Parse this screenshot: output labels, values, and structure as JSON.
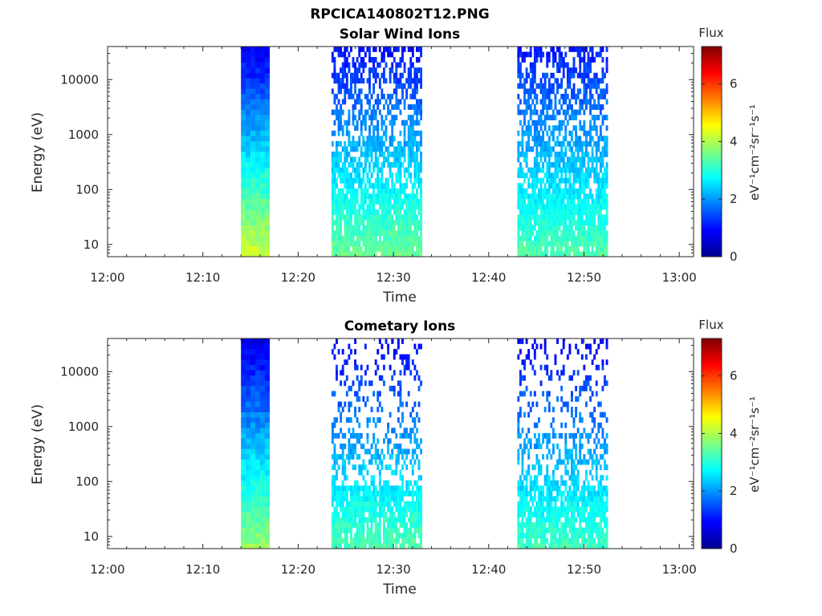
{
  "figure": {
    "main_title": "RPCICA140802T12.PNG"
  },
  "colors": {
    "colormap": [
      "#00008f",
      "#0000ff",
      "#007fff",
      "#00ffff",
      "#7fff7f",
      "#ffff00",
      "#ff7f00",
      "#ff0000",
      "#7f0000"
    ],
    "axes": "#262626",
    "background": "#ffffff"
  },
  "chart_data": [
    {
      "type": "heatmap",
      "title": "Solar Wind Ions",
      "xlabel": "Time",
      "ylabel": "Energy (eV)",
      "x_scale": "time",
      "y_scale": "log",
      "xlim": [
        "12:00",
        "13:01.5"
      ],
      "ylim": [
        6,
        40000
      ],
      "x_ticks": [
        "12:00",
        "12:10",
        "12:20",
        "12:30",
        "12:40",
        "12:50",
        "13:00"
      ],
      "y_ticks": [
        "10",
        "100",
        "1000",
        "10000"
      ],
      "colorbar": {
        "title": "Flux",
        "label": "eV⁻¹cm⁻²sr⁻¹s⁻¹",
        "range": [
          0,
          7.3
        ],
        "ticks": [
          "0",
          "2",
          "4",
          "6"
        ]
      },
      "grid": false,
      "data_blocks": [
        {
          "start": "12:14",
          "end": "12:17",
          "fill": "dense",
          "flux_at_10eV": 4.2,
          "flux_at_40keV": 0.8
        },
        {
          "start": "12:23.5",
          "end": "12:33",
          "fill": "sparse-high-energy",
          "flux_at_10eV": 3.5,
          "flux_at_40keV": 1.0
        },
        {
          "start": "12:43",
          "end": "12:52.5",
          "fill": "sparse-high-energy",
          "flux_at_10eV": 3.3,
          "flux_at_40keV": 1.1
        }
      ]
    },
    {
      "type": "heatmap",
      "title": "Cometary Ions",
      "xlabel": "Time",
      "ylabel": "Energy (eV)",
      "x_scale": "time",
      "y_scale": "log",
      "xlim": [
        "12:00",
        "13:01.5"
      ],
      "ylim": [
        6,
        40000
      ],
      "x_ticks": [
        "12:00",
        "12:10",
        "12:20",
        "12:30",
        "12:40",
        "12:50",
        "13:00"
      ],
      "y_ticks": [
        "10",
        "100",
        "1000",
        "10000"
      ],
      "colorbar": {
        "title": "Flux",
        "label": "eV⁻¹cm⁻²sr⁻¹s⁻¹",
        "range": [
          0,
          7.3
        ],
        "ticks": [
          "0",
          "2",
          "4",
          "6"
        ]
      },
      "grid": false,
      "data_blocks": [
        {
          "start": "12:14",
          "end": "12:17",
          "fill": "dense",
          "flux_at_10eV": 3.8,
          "flux_at_40keV": 0.7
        },
        {
          "start": "12:23.5",
          "end": "12:33",
          "fill": "very-sparse",
          "flux_at_10eV": 3.3,
          "flux_at_40keV": 0.9
        },
        {
          "start": "12:43",
          "end": "12:52.5",
          "fill": "very-sparse",
          "flux_at_10eV": 3.2,
          "flux_at_40keV": 0.9
        }
      ]
    }
  ]
}
